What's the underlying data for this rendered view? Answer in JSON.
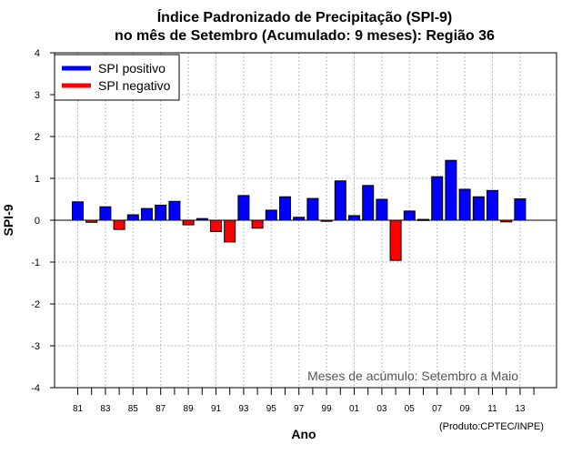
{
  "chart_data": {
    "type": "bar",
    "title_line1": "Índice Padronizado de Precipitação (SPI-9)",
    "title_line2": "no mês de Setembro (Acumulado: 9 meses): Região 36",
    "xlabel": "Ano",
    "ylabel": "SPI-9",
    "ylim": [
      -4,
      4
    ],
    "yticks": [
      "4",
      "3",
      "2",
      "1",
      "0",
      "-1",
      "-2",
      "-3",
      "-4"
    ],
    "ytick_values": [
      4,
      3,
      2,
      1,
      0,
      -1,
      -2,
      -3,
      -4
    ],
    "xtick_labels": [
      "81",
      "83",
      "85",
      "87",
      "89",
      "91",
      "93",
      "95",
      "97",
      "99",
      "01",
      "03",
      "05",
      "07",
      "09",
      "11",
      "13"
    ],
    "years": [
      1981,
      1982,
      1983,
      1984,
      1985,
      1986,
      1987,
      1988,
      1989,
      1990,
      1991,
      1992,
      1993,
      1994,
      1995,
      1996,
      1997,
      1998,
      1999,
      2000,
      2001,
      2002,
      2003,
      2004,
      2005,
      2006,
      2007,
      2008,
      2009,
      2010,
      2011,
      2012,
      2013
    ],
    "values": [
      0.44,
      -0.05,
      0.32,
      -0.22,
      0.13,
      0.28,
      0.36,
      0.45,
      -0.11,
      0.04,
      -0.27,
      -0.52,
      0.59,
      -0.19,
      0.24,
      0.56,
      0.07,
      0.52,
      -0.02,
      0.94,
      0.11,
      0.83,
      0.5,
      -0.96,
      0.22,
      0.02,
      1.04,
      1.43,
      0.74,
      0.56,
      0.71,
      -0.04,
      0.51
    ],
    "legend": [
      {
        "label": "SPI positivo",
        "color": "#0000ff"
      },
      {
        "label": "SPI negativo",
        "color": "#ff0000"
      }
    ],
    "legend_position": "top-left",
    "annotation": "Meses de acúmulo: Setembro a Maio",
    "credit": "(Produto:CPTEC/INPE)",
    "grid": true
  }
}
